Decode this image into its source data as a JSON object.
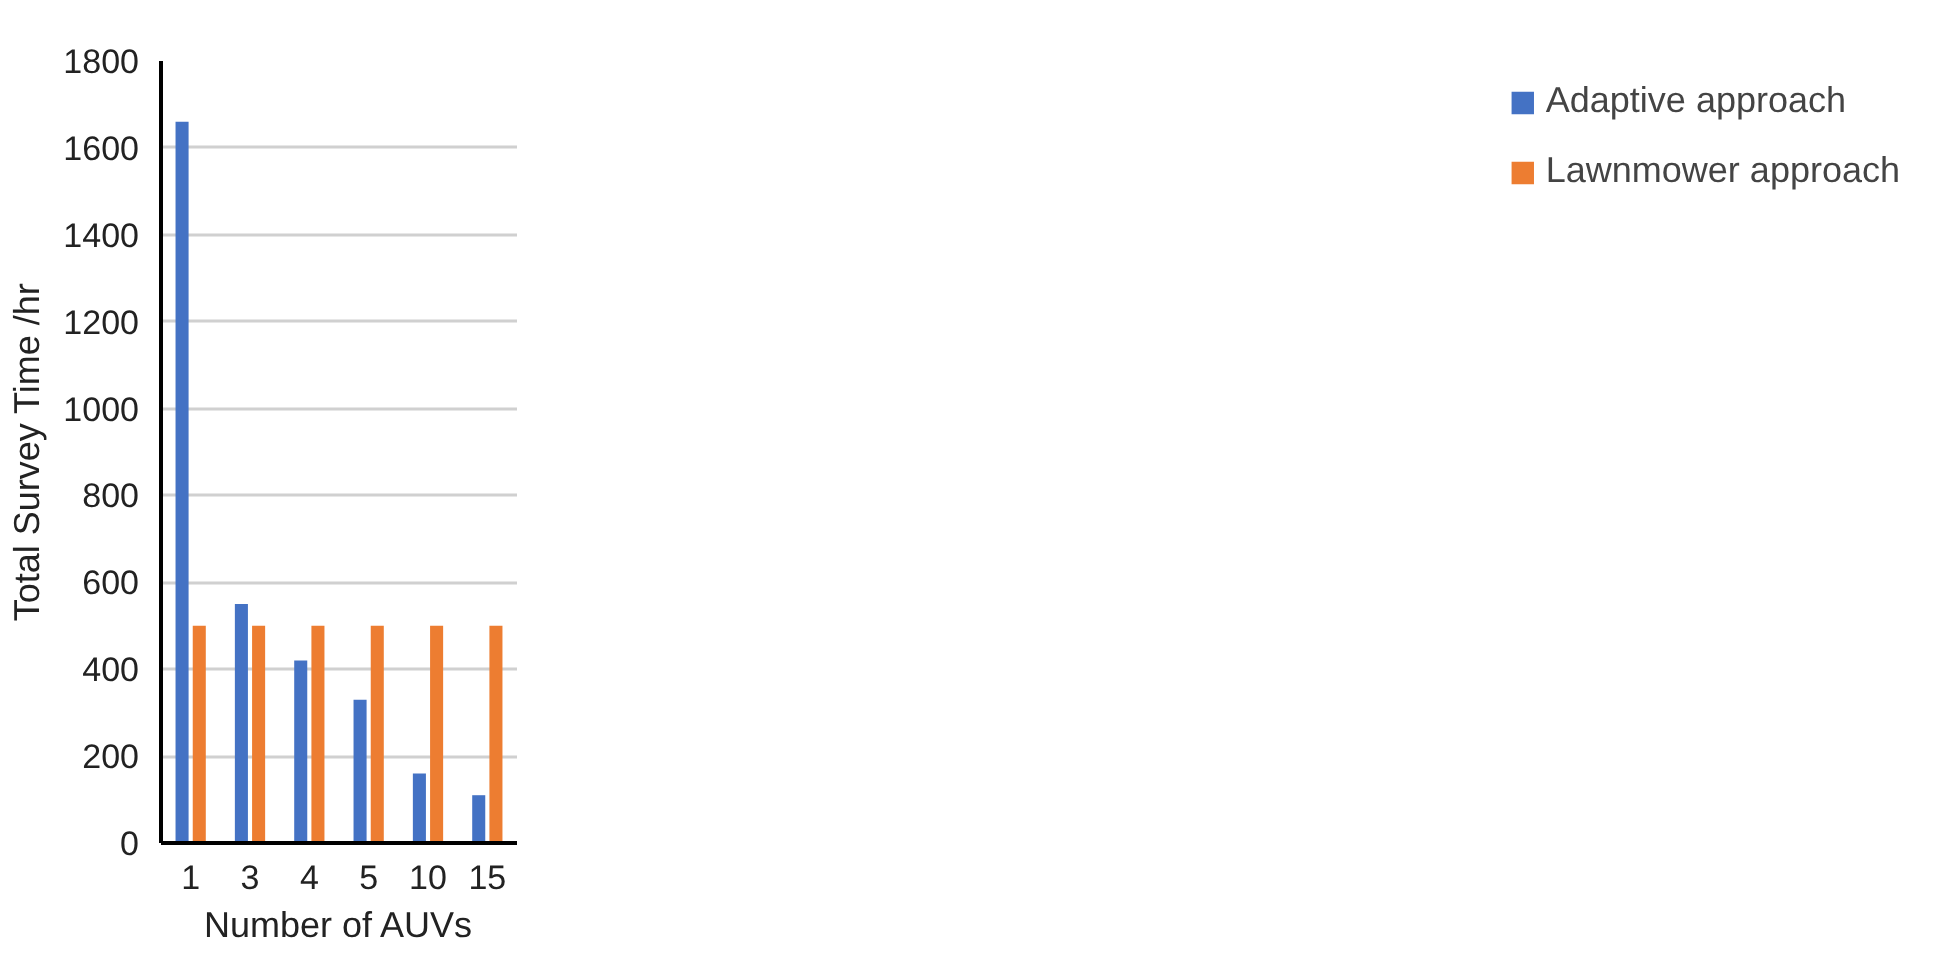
{
  "chart_data": {
    "type": "bar",
    "xlabel": "Number of AUVs",
    "ylabel": "Total Survey Time /hr",
    "categories": [
      "1",
      "3",
      "4",
      "5",
      "10",
      "15"
    ],
    "series": [
      {
        "name": "Adaptive approach",
        "color": "#4472c4",
        "values": [
          1660,
          550,
          420,
          330,
          160,
          110
        ]
      },
      {
        "name": "Lawnmower approach",
        "color": "#ed7d31",
        "values": [
          500,
          500,
          500,
          500,
          500,
          500
        ]
      }
    ],
    "ylim": [
      0,
      1800
    ],
    "yticks": [
      0,
      200,
      400,
      600,
      800,
      1000,
      1200,
      1400,
      1600,
      1800
    ],
    "grid": "y",
    "legend": "right"
  }
}
